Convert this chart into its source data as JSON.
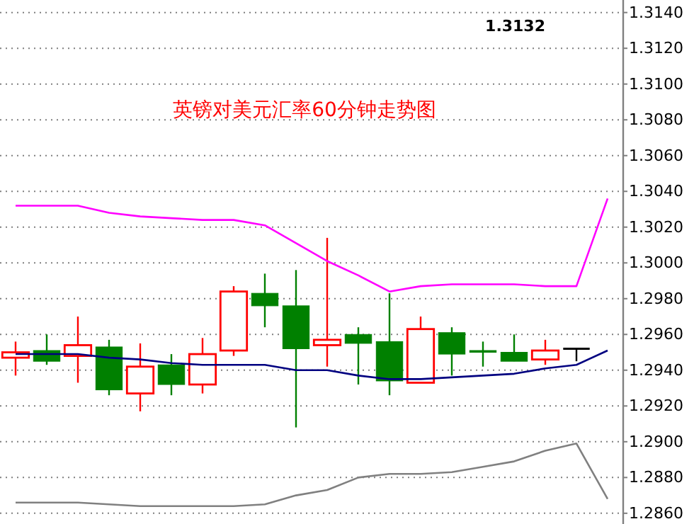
{
  "chart_data": {
    "type": "candlestick",
    "title": "英镑对美元汇率60分钟走势图",
    "annotations": [
      "1.3132"
    ],
    "categories": [
      null,
      null,
      null,
      null,
      null,
      null,
      null,
      null,
      null,
      null,
      null,
      null,
      null,
      null,
      null,
      null,
      null,
      null,
      null,
      null
    ],
    "ohlc": [
      [
        1.2947,
        1.2956,
        1.2937,
        1.295
      ],
      [
        1.2951,
        1.296,
        1.2943,
        1.2945
      ],
      [
        1.2948,
        1.297,
        1.2933,
        1.2954
      ],
      [
        1.2953,
        1.2957,
        1.2926,
        1.2929
      ],
      [
        1.2927,
        1.2955,
        1.2917,
        1.2942
      ],
      [
        1.2943,
        1.2949,
        1.2926,
        1.2932
      ],
      [
        1.2932,
        1.2958,
        1.2927,
        1.2949
      ],
      [
        1.2951,
        1.2987,
        1.2948,
        1.2984
      ],
      [
        1.2983,
        1.2994,
        1.2964,
        1.2976
      ],
      [
        1.2976,
        1.2996,
        1.2908,
        1.2952
      ],
      [
        1.2954,
        1.3014,
        1.2942,
        1.2957
      ],
      [
        1.296,
        1.2964,
        1.2932,
        1.2955
      ],
      [
        1.2956,
        1.2983,
        1.2926,
        1.2934
      ],
      [
        1.2933,
        1.297,
        1.2933,
        1.2963
      ],
      [
        1.2961,
        1.2964,
        1.2937,
        1.2949
      ],
      [
        1.2951,
        1.2956,
        1.2942,
        1.295
      ],
      [
        1.295,
        1.296,
        1.2945,
        1.2945
      ],
      [
        1.2946,
        1.2957,
        1.2943,
        1.2951
      ],
      [
        1.2952,
        1.2952,
        1.2945,
        1.2952
      ],
      null
    ],
    "colors": [
      "#ff0000",
      "#008000",
      "#ff0000",
      "#008000",
      "#ff0000",
      "#008000",
      "#ff0000",
      "#ff0000",
      "#008000",
      "#008000",
      "#ff0000",
      "#008000",
      "#008000",
      "#ff0000",
      "#008000",
      "#008000",
      "#008000",
      "#ff0000",
      "#000000",
      null
    ],
    "series": [
      {
        "type": "line",
        "color": "#ff00ff",
        "values": [
          1.3032,
          1.3032,
          1.3032,
          1.3028,
          1.3026,
          1.3025,
          1.3024,
          1.3024,
          1.3021,
          1.3011,
          1.3001,
          1.2993,
          1.2984,
          1.2987,
          1.2988,
          1.2988,
          1.2988,
          1.2987,
          1.2987,
          1.3036
        ]
      },
      {
        "type": "line",
        "color": "#000080",
        "values": [
          1.2949,
          1.2949,
          1.2949,
          1.2947,
          1.2946,
          1.2944,
          1.2943,
          1.2943,
          1.2943,
          1.294,
          1.294,
          1.2937,
          1.2935,
          1.2935,
          1.2936,
          1.2937,
          1.2938,
          1.2941,
          1.2943,
          1.2951
        ]
      },
      {
        "type": "line",
        "color": "#808080",
        "values": [
          1.2866,
          1.2866,
          1.2866,
          1.2865,
          1.2864,
          1.2864,
          1.2864,
          1.2864,
          1.2865,
          1.287,
          1.2873,
          1.288,
          1.2882,
          1.2882,
          1.2883,
          1.2886,
          1.2889,
          1.2895,
          1.2899,
          1.2868
        ]
      }
    ],
    "ylim": [
      1.2854,
      1.3147
    ],
    "yticks": [
      {
        "value": 1.286,
        "label": "1.2860"
      },
      {
        "value": 1.288,
        "label": "1.2880"
      },
      {
        "value": 1.29,
        "label": "1.2900"
      },
      {
        "value": 1.292,
        "label": "1.2920"
      },
      {
        "value": 1.294,
        "label": "1.2940"
      },
      {
        "value": 1.296,
        "label": "1.2960"
      },
      {
        "value": 1.298,
        "label": "1.2980"
      },
      {
        "value": 1.3,
        "label": "1.3000"
      },
      {
        "value": 1.302,
        "label": "1.3020"
      },
      {
        "value": 1.304,
        "label": "1.3040"
      },
      {
        "value": 1.306,
        "label": "1.3060"
      },
      {
        "value": 1.308,
        "label": "1.3080"
      },
      {
        "value": 1.31,
        "label": "1.3100"
      },
      {
        "value": 1.312,
        "label": "1.3120"
      },
      {
        "value": 1.314,
        "label": "1.3140"
      }
    ],
    "grid": "y",
    "tick_labels": "y"
  }
}
